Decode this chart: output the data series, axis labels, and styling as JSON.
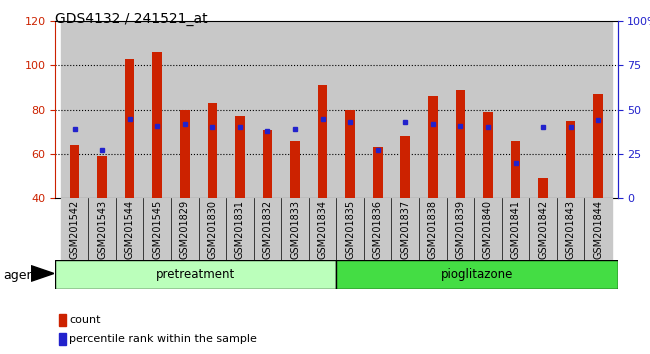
{
  "title": "GDS4132 / 241521_at",
  "samples": [
    "GSM201542",
    "GSM201543",
    "GSM201544",
    "GSM201545",
    "GSM201829",
    "GSM201830",
    "GSM201831",
    "GSM201832",
    "GSM201833",
    "GSM201834",
    "GSM201835",
    "GSM201836",
    "GSM201837",
    "GSM201838",
    "GSM201839",
    "GSM201840",
    "GSM201841",
    "GSM201842",
    "GSM201843",
    "GSM201844"
  ],
  "count_values": [
    64,
    59,
    103,
    106,
    80,
    83,
    77,
    71,
    66,
    91,
    80,
    63,
    68,
    86,
    89,
    79,
    66,
    49,
    75,
    87
  ],
  "percentile_values": [
    39,
    27,
    45,
    41,
    42,
    40,
    40,
    38,
    39,
    45,
    43,
    27,
    43,
    42,
    41,
    40,
    20,
    40,
    40,
    44
  ],
  "bar_color": "#cc2200",
  "percentile_color": "#2222cc",
  "ylim_left": [
    40,
    120
  ],
  "ylim_right": [
    0,
    100
  ],
  "yticks_left": [
    40,
    60,
    80,
    100,
    120
  ],
  "yticks_right": [
    0,
    25,
    50,
    75,
    100
  ],
  "yticklabels_right": [
    "0",
    "25",
    "50",
    "75",
    "100%"
  ],
  "groups": [
    {
      "label": "pretreatment",
      "start": 0,
      "end": 10,
      "color": "#bbffbb"
    },
    {
      "label": "pioglitazone",
      "start": 10,
      "end": 20,
      "color": "#44dd44"
    }
  ],
  "agent_label": "agent",
  "legend_count_label": "count",
  "legend_percentile_label": "percentile rank within the sample",
  "bar_width": 0.35,
  "col_bg_color": "#c8c8c8",
  "plot_bg": "#ffffff"
}
